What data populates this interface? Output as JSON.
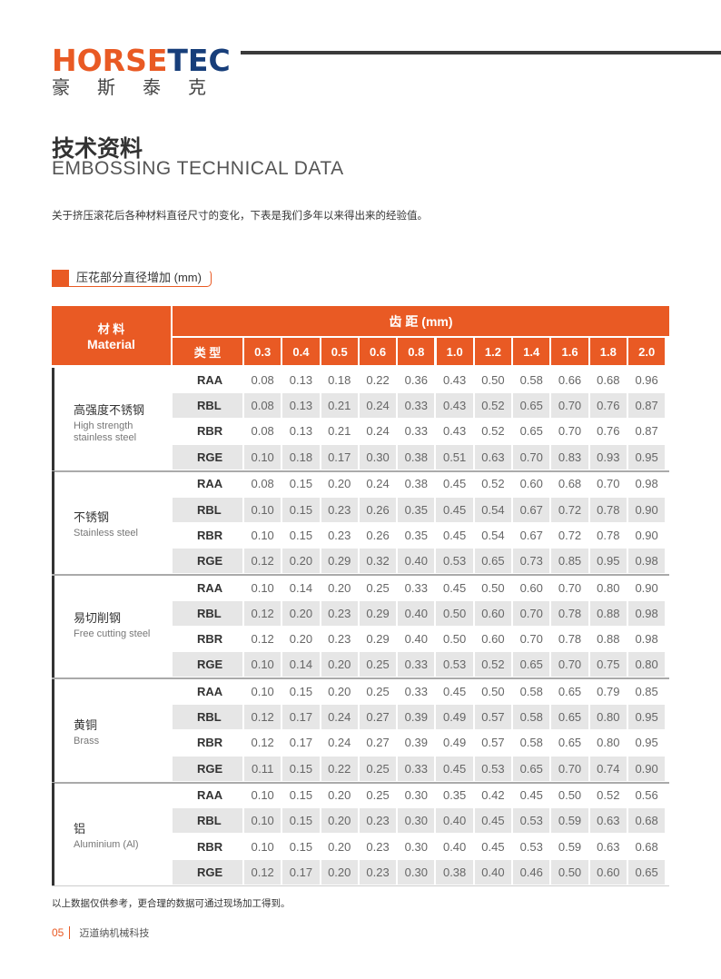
{
  "logo": {
    "word_a": "HORSE",
    "word_b": "TEC",
    "cn": "豪斯泰克"
  },
  "title_cn": "技术资料",
  "title_en": "EMBOSSING TECHNICAL DATA",
  "intro": "关于挤压滚花后各种材料直径尺寸的变化，下表是我们多年以来得出来的经验值。",
  "section_label": "压花部分直径增加 (mm)",
  "table": {
    "material_header_cn": "材 料",
    "material_header_en": "Material",
    "pitch_header": "齿 距 (mm)",
    "type_header": "类 型",
    "pitches": [
      "0.3",
      "0.4",
      "0.5",
      "0.6",
      "0.8",
      "1.0",
      "1.2",
      "1.4",
      "1.6",
      "1.8",
      "2.0"
    ],
    "groups": [
      {
        "cn": "高强度不锈钢",
        "en": "High strength stainless steel",
        "rows": [
          [
            "RAA",
            "0.08",
            "0.13",
            "0.18",
            "0.22",
            "0.36",
            "0.43",
            "0.50",
            "0.58",
            "0.66",
            "0.68",
            "0.96"
          ],
          [
            "RBL",
            "0.08",
            "0.13",
            "0.21",
            "0.24",
            "0.33",
            "0.43",
            "0.52",
            "0.65",
            "0.70",
            "0.76",
            "0.87"
          ],
          [
            "RBR",
            "0.08",
            "0.13",
            "0.21",
            "0.24",
            "0.33",
            "0.43",
            "0.52",
            "0.65",
            "0.70",
            "0.76",
            "0.87"
          ],
          [
            "RGE",
            "0.10",
            "0.18",
            "0.17",
            "0.30",
            "0.38",
            "0.51",
            "0.63",
            "0.70",
            "0.83",
            "0.93",
            "0.95"
          ]
        ]
      },
      {
        "cn": "不锈钢",
        "en": "Stainless steel",
        "rows": [
          [
            "RAA",
            "0.08",
            "0.15",
            "0.20",
            "0.24",
            "0.38",
            "0.45",
            "0.52",
            "0.60",
            "0.68",
            "0.70",
            "0.98"
          ],
          [
            "RBL",
            "0.10",
            "0.15",
            "0.23",
            "0.26",
            "0.35",
            "0.45",
            "0.54",
            "0.67",
            "0.72",
            "0.78",
            "0.90"
          ],
          [
            "RBR",
            "0.10",
            "0.15",
            "0.23",
            "0.26",
            "0.35",
            "0.45",
            "0.54",
            "0.67",
            "0.72",
            "0.78",
            "0.90"
          ],
          [
            "RGE",
            "0.12",
            "0.20",
            "0.29",
            "0.32",
            "0.40",
            "0.53",
            "0.65",
            "0.73",
            "0.85",
            "0.95",
            "0.98"
          ]
        ]
      },
      {
        "cn": "易切削钢",
        "en": "Free cutting steel",
        "rows": [
          [
            "RAA",
            "0.10",
            "0.14",
            "0.20",
            "0.25",
            "0.33",
            "0.45",
            "0.50",
            "0.60",
            "0.70",
            "0.80",
            "0.90"
          ],
          [
            "RBL",
            "0.12",
            "0.20",
            "0.23",
            "0.29",
            "0.40",
            "0.50",
            "0.60",
            "0.70",
            "0.78",
            "0.88",
            "0.98"
          ],
          [
            "RBR",
            "0.12",
            "0.20",
            "0.23",
            "0.29",
            "0.40",
            "0.50",
            "0.60",
            "0.70",
            "0.78",
            "0.88",
            "0.98"
          ],
          [
            "RGE",
            "0.10",
            "0.14",
            "0.20",
            "0.25",
            "0.33",
            "0.53",
            "0.52",
            "0.65",
            "0.70",
            "0.75",
            "0.80"
          ]
        ]
      },
      {
        "cn": "黄铜",
        "en": "Brass",
        "rows": [
          [
            "RAA",
            "0.10",
            "0.15",
            "0.20",
            "0.25",
            "0.33",
            "0.45",
            "0.50",
            "0.58",
            "0.65",
            "0.79",
            "0.85"
          ],
          [
            "RBL",
            "0.12",
            "0.17",
            "0.24",
            "0.27",
            "0.39",
            "0.49",
            "0.57",
            "0.58",
            "0.65",
            "0.80",
            "0.95"
          ],
          [
            "RBR",
            "0.12",
            "0.17",
            "0.24",
            "0.27",
            "0.39",
            "0.49",
            "0.57",
            "0.58",
            "0.65",
            "0.80",
            "0.95"
          ],
          [
            "RGE",
            "0.11",
            "0.15",
            "0.22",
            "0.25",
            "0.33",
            "0.45",
            "0.53",
            "0.65",
            "0.70",
            "0.74",
            "0.90"
          ]
        ]
      },
      {
        "cn": "铝",
        "en": "Aluminium (Al)",
        "rows": [
          [
            "RAA",
            "0.10",
            "0.15",
            "0.20",
            "0.25",
            "0.30",
            "0.35",
            "0.42",
            "0.45",
            "0.50",
            "0.52",
            "0.56"
          ],
          [
            "RBL",
            "0.10",
            "0.15",
            "0.20",
            "0.23",
            "0.30",
            "0.40",
            "0.45",
            "0.53",
            "0.59",
            "0.63",
            "0.68"
          ],
          [
            "RBR",
            "0.10",
            "0.15",
            "0.20",
            "0.23",
            "0.30",
            "0.40",
            "0.45",
            "0.53",
            "0.59",
            "0.63",
            "0.68"
          ],
          [
            "RGE",
            "0.12",
            "0.17",
            "0.20",
            "0.23",
            "0.30",
            "0.38",
            "0.40",
            "0.46",
            "0.50",
            "0.60",
            "0.65"
          ]
        ]
      }
    ]
  },
  "note": "以上数据仅供参考，更合理的数据可通过现场加工得到。",
  "footer": {
    "page": "05",
    "company": "迈道纳机械科技"
  },
  "colors": {
    "accent": "#e95a24",
    "brand_blue": "#173e7a"
  }
}
